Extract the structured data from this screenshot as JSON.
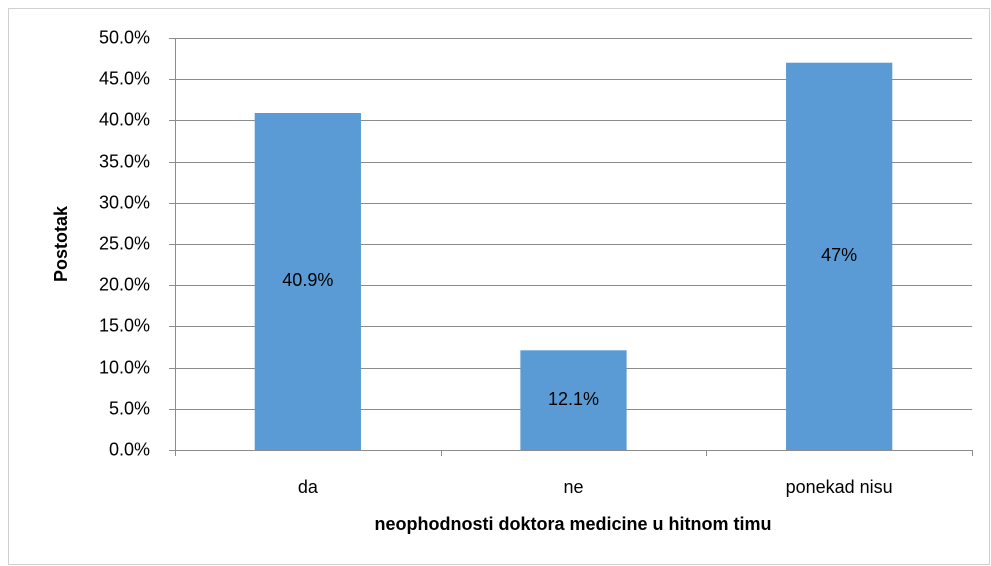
{
  "chart_data": {
    "type": "bar",
    "x_label": "neophodnosti doktora medicine u hitnom timu",
    "y_label": "Postotak",
    "categories": [
      "da",
      "ne",
      "ponekad nisu"
    ],
    "values": [
      40.9,
      12.1,
      47
    ],
    "value_labels": [
      "40.9%",
      "12.1%",
      "47%"
    ],
    "color": "#5b9bd5",
    "ylim": [
      0,
      50
    ],
    "yticks": [
      {
        "value": 0,
        "label": "0.0%"
      },
      {
        "value": 5,
        "label": "5.0%"
      },
      {
        "value": 10,
        "label": "10.0%"
      },
      {
        "value": 15,
        "label": "15.0%"
      },
      {
        "value": 20,
        "label": "20.0%"
      },
      {
        "value": 25,
        "label": "25.0%"
      },
      {
        "value": 30,
        "label": "30.0%"
      },
      {
        "value": 35,
        "label": "35.0%"
      },
      {
        "value": 40,
        "label": "40.0%"
      },
      {
        "value": 45,
        "label": "45.0%"
      },
      {
        "value": 50,
        "label": "50.0%"
      }
    ],
    "grid": true
  }
}
